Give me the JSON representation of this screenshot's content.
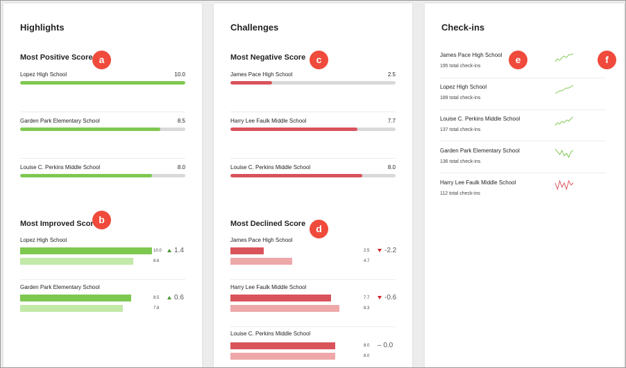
{
  "colors": {
    "positive": "#7ec850",
    "negative": "#d9535b",
    "badge": "#ef4a3b"
  },
  "highlights": {
    "title": "Highlights",
    "positive": {
      "title": "Most Positive Score",
      "badge": "a",
      "rows": [
        {
          "school": "Lopez High School",
          "score": "10.0",
          "fraction": 1.0
        },
        {
          "school": "Garden Park Elementary School",
          "score": "8.5",
          "fraction": 0.85
        },
        {
          "school": "Louise C. Perkins Middle School",
          "score": "8.0",
          "fraction": 0.8
        }
      ]
    },
    "improved": {
      "title": "Most Improved Score",
      "badge": "b",
      "rows": [
        {
          "school": "Lopez High School",
          "current": "10.0",
          "previous": "8.6",
          "delta": "1.4",
          "direction": "up"
        },
        {
          "school": "Garden Park Elementary School",
          "current": "8.5",
          "previous": "7.8",
          "delta": "0.6",
          "direction": "up"
        }
      ]
    }
  },
  "challenges": {
    "title": "Challenges",
    "negative": {
      "title": "Most Negative Score",
      "badge": "c",
      "rows": [
        {
          "school": "James Pace High School",
          "score": "2.5",
          "fraction": 0.25
        },
        {
          "school": "Harry Lee Faulk Middle School",
          "score": "7.7",
          "fraction": 0.77
        },
        {
          "school": "Louise C. Perkins Middle School",
          "score": "8.0",
          "fraction": 0.8
        }
      ]
    },
    "declined": {
      "title": "Most Declined Score",
      "badge": "d",
      "rows": [
        {
          "school": "James Pace High School",
          "current": "2.5",
          "previous": "4.7",
          "delta": "-2.2",
          "direction": "down"
        },
        {
          "school": "Harry Lee Faulk Middle School",
          "current": "7.7",
          "previous": "8.3",
          "delta": "-0.6",
          "direction": "down"
        },
        {
          "school": "Louise C. Perkins Middle School",
          "current": "8.0",
          "previous": "8.0",
          "delta": "– 0.0",
          "direction": "flat"
        }
      ]
    }
  },
  "checkins": {
    "title": "Check-ins",
    "badges": [
      "e",
      "f"
    ],
    "items": [
      {
        "school": "James Pace High School",
        "count": "195 total check-ins",
        "trend": "positive",
        "spark": [
          3,
          5,
          4,
          6,
          7,
          6,
          8,
          8,
          9
        ]
      },
      {
        "school": "Lopez High School",
        "count": "189 total check-ins",
        "trend": "positive",
        "spark": [
          3,
          4,
          5,
          5,
          6,
          7,
          7,
          8,
          9
        ]
      },
      {
        "school": "Louise C. Perkins Middle School",
        "count": "137 total check-ins",
        "trend": "positive",
        "spark": [
          3,
          5,
          4,
          6,
          5,
          7,
          6,
          8,
          9
        ]
      },
      {
        "school": "Garden Park Elementary School",
        "count": "136 total check-ins",
        "trend": "positive",
        "spark": [
          8,
          6,
          4,
          7,
          3,
          5,
          2,
          6,
          7
        ]
      },
      {
        "school": "Harry Lee Faulk Middle School",
        "count": "112 total check-ins",
        "trend": "negative",
        "spark": [
          6,
          3,
          7,
          4,
          6,
          3,
          7,
          5,
          6
        ]
      }
    ]
  }
}
